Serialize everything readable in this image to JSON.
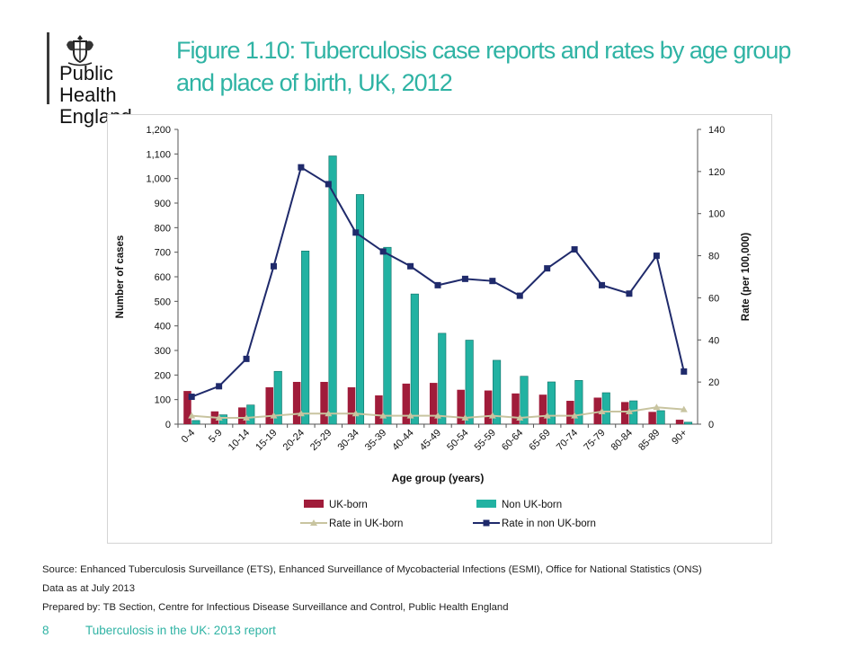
{
  "slide": {
    "title": "Figure 1.10: Tuberculosis case reports and rates by age group and place of birth, UK, 2012",
    "organisation": "Public Health\nEngland",
    "source": "Source: Enhanced Tuberculosis Surveillance (ETS), Enhanced Surveillance of Mycobacterial Infections (ESMI), Office for National Statistics (ONS)",
    "data_date": "Data as at July 2013",
    "prepared_by": "Prepared by: TB Section, Centre for Infectious Disease Surveillance and Control, Public Health England",
    "page_number": "8",
    "report_title": "Tuberculosis in the UK: 2013 report"
  },
  "colors": {
    "accent": "#2fb3a4",
    "uk_born_bar": "#a01c3a",
    "non_uk_born_bar": "#22b2a2",
    "rate_uk_born": "#c8c4a0",
    "rate_non_uk_born": "#1f2a6b"
  },
  "chart_data": {
    "type": "bar",
    "categories": [
      "0-4",
      "5-9",
      "10-14",
      "15-19",
      "20-24",
      "25-29",
      "30-34",
      "35-39",
      "40-44",
      "45-49",
      "50-54",
      "55-59",
      "60-64",
      "65-69",
      "70-74",
      "75-79",
      "80-84",
      "85-89",
      "90+"
    ],
    "xlabel": "Age group (years)",
    "ylabel": "Number of cases",
    "y2label": "Rate (per 100,000)",
    "ylim": [
      0,
      1200
    ],
    "y2lim": [
      0,
      140
    ],
    "yticks": [
      "0",
      "100",
      "200",
      "300",
      "400",
      "500",
      "600",
      "700",
      "800",
      "900",
      "1,000",
      "1,100",
      "1,200"
    ],
    "y2ticks": [
      "0",
      "20",
      "40",
      "60",
      "80",
      "100",
      "120",
      "140"
    ],
    "legend_position": "bottom",
    "series": [
      {
        "name": "UK-born",
        "kind": "bar",
        "axis": "left",
        "values": [
          135,
          52,
          68,
          150,
          172,
          172,
          150,
          117,
          165,
          168,
          140,
          137,
          125,
          120,
          95,
          108,
          90,
          50,
          18
        ]
      },
      {
        "name": "Non UK-born",
        "kind": "bar",
        "axis": "left",
        "values": [
          15,
          38,
          78,
          215,
          705,
          1092,
          935,
          720,
          530,
          370,
          342,
          260,
          195,
          172,
          178,
          128,
          95,
          55,
          8
        ]
      },
      {
        "name": "Rate in UK-born",
        "kind": "line",
        "axis": "right",
        "values": [
          4,
          3,
          3,
          4,
          5,
          5,
          5,
          4,
          4,
          4,
          3,
          4,
          3,
          4,
          4,
          6,
          6,
          8,
          7
        ]
      },
      {
        "name": "Rate in non UK-born",
        "kind": "line",
        "axis": "right",
        "values": [
          13,
          18,
          31,
          75,
          122,
          114,
          91,
          82,
          75,
          66,
          69,
          68,
          61,
          74,
          83,
          66,
          62,
          80,
          25
        ]
      }
    ]
  }
}
